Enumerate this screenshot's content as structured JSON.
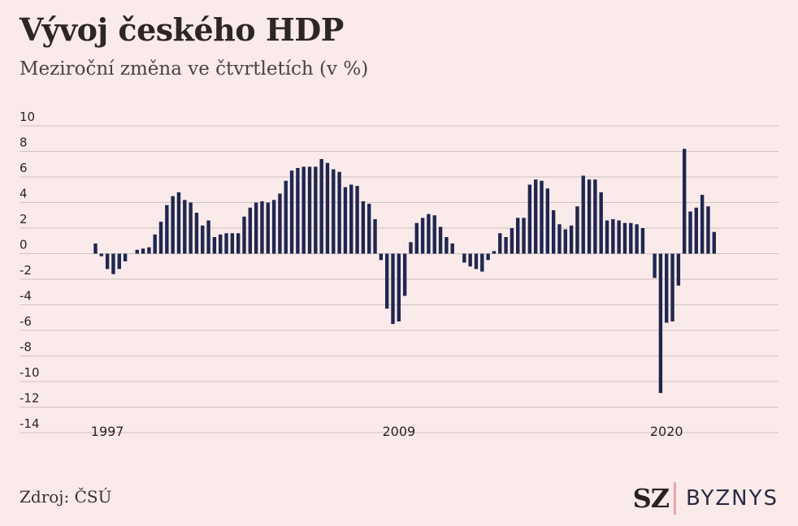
{
  "header": {
    "title": "Vývoj českého HDP",
    "subtitle": "Meziroční změna ve čtvrtletích (v %)"
  },
  "footer": {
    "source": "Zdroj: ČSÚ",
    "logo_sz": "SZ",
    "logo_byznys": "BYZNYS"
  },
  "colors": {
    "background": "#fbeaea",
    "bar": "#1f2750",
    "grid": "#cfc3c3",
    "accent": "#e9a7ae"
  },
  "chart_data": {
    "type": "bar",
    "grid": true,
    "ylim": [
      -14,
      10
    ],
    "y_ticks": [
      10,
      8,
      6,
      4,
      2,
      0,
      -2,
      -4,
      -6,
      -8,
      -10,
      -12,
      -14
    ],
    "x_labels": [
      {
        "label": "1997",
        "index": 2
      },
      {
        "label": "2009",
        "index": 51
      },
      {
        "label": "2020",
        "index": 96
      }
    ],
    "values": [
      0.8,
      -0.2,
      -1.2,
      -1.6,
      -1.2,
      -0.6,
      0.0,
      0.3,
      0.4,
      0.5,
      1.5,
      2.5,
      3.8,
      4.5,
      4.8,
      4.2,
      4.0,
      3.2,
      2.2,
      2.6,
      1.3,
      1.5,
      1.6,
      1.6,
      1.6,
      2.9,
      3.6,
      4.0,
      4.1,
      4.0,
      4.2,
      4.7,
      5.7,
      6.5,
      6.7,
      6.8,
      6.8,
      6.8,
      7.4,
      7.1,
      6.6,
      6.4,
      5.2,
      5.4,
      5.3,
      4.1,
      3.9,
      2.7,
      -0.5,
      -4.3,
      -5.5,
      -5.3,
      -3.3,
      0.9,
      2.4,
      2.8,
      3.1,
      3.0,
      2.1,
      1.3,
      0.8,
      0.0,
      -0.7,
      -1.0,
      -1.2,
      -1.4,
      -0.5,
      0.2,
      1.6,
      1.3,
      2.0,
      2.8,
      2.8,
      5.4,
      5.8,
      5.7,
      5.1,
      3.4,
      2.3,
      1.9,
      2.2,
      3.7,
      6.1,
      5.8,
      5.8,
      4.8,
      2.6,
      2.7,
      2.6,
      2.4,
      2.4,
      2.3,
      2.0,
      0.0,
      -1.9,
      -10.9,
      -5.4,
      -5.3,
      -2.5,
      8.2,
      3.3,
      3.6,
      4.6,
      3.7,
      1.7
    ]
  }
}
